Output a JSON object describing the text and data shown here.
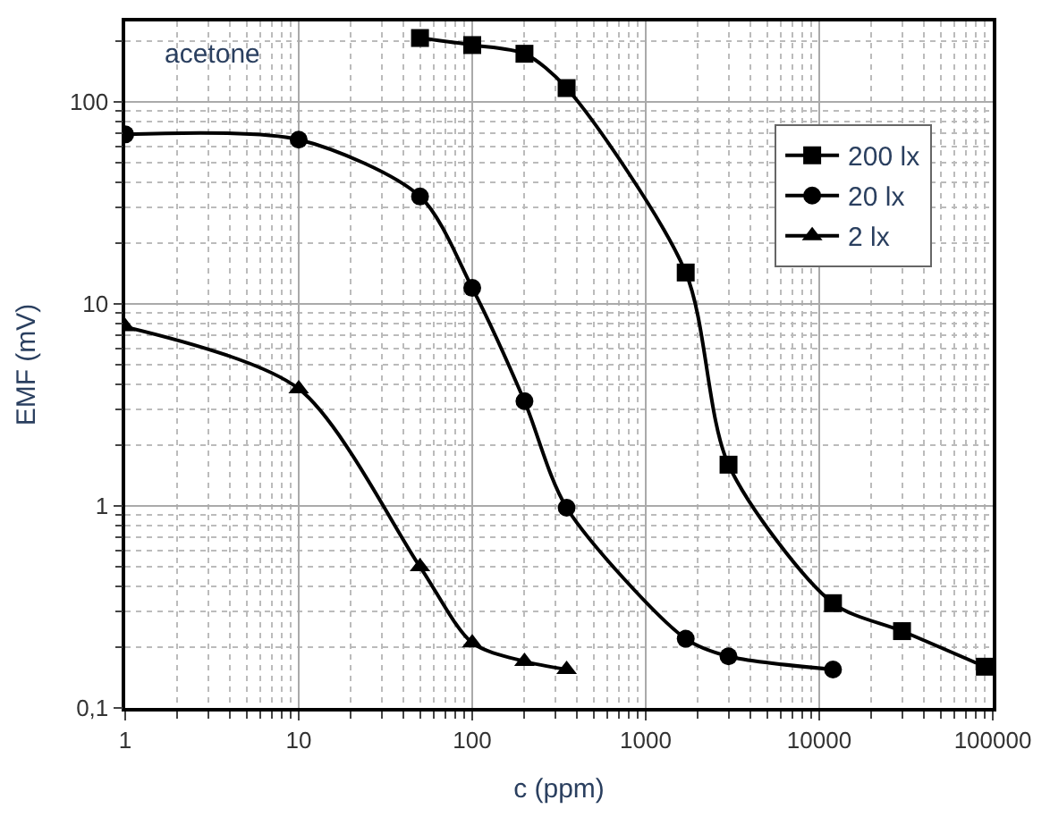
{
  "chart_data": {
    "type": "line",
    "xlabel": "c (ppm)",
    "ylabel": "EMF (mV)",
    "log": "xy",
    "grid": true,
    "legend": "top right",
    "line_style": "solid",
    "annotations": [
      "acetone"
    ],
    "xlim": [
      1,
      100000
    ],
    "xticks": [
      1,
      10,
      100,
      1000,
      10000,
      100000
    ],
    "ylim": [
      0.1,
      250
    ],
    "yticks": [
      {
        "value": 0.1,
        "label": "0,1"
      },
      1,
      10,
      100
    ],
    "series": [
      {
        "name": "200 lx",
        "color": "#000000",
        "marker": "square",
        "x": [
          50,
          100,
          200,
          350,
          1700,
          3000,
          12000,
          30000,
          90000
        ],
        "values": [
          207,
          191,
          173,
          117,
          14.3,
          1.6,
          0.33,
          0.24,
          0.16
        ]
      },
      {
        "name": "20 lx",
        "color": "#000000",
        "marker": "circle",
        "x": [
          1,
          10,
          50,
          100,
          200,
          350,
          1700,
          3000,
          12000
        ],
        "values": [
          69,
          65,
          34,
          12,
          3.3,
          0.98,
          0.22,
          0.18,
          0.155
        ]
      },
      {
        "name": "2 lx",
        "color": "#000000",
        "marker": "triangle",
        "x": [
          1,
          10,
          50,
          100,
          200,
          350
        ],
        "values": [
          7.7,
          3.8,
          0.5,
          0.21,
          0.17,
          0.155
        ]
      }
    ]
  }
}
